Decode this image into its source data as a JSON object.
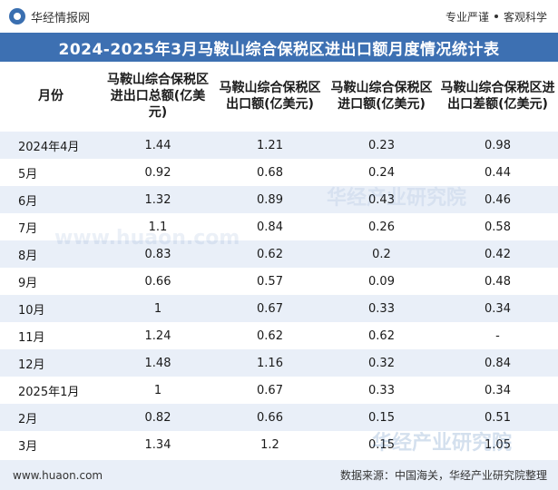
{
  "brand": {
    "name": "华经情报网",
    "tagline_left": "专业严谨",
    "tagline_right": "客观科学"
  },
  "title": "2024-2025年3月马鞍山综合保税区进出口额月度情况统计表",
  "table": {
    "headers": [
      "月份",
      "马鞍山综合保税区进出口总额(亿美元)",
      "马鞍山综合保税区出口额(亿美元)",
      "马鞍山综合保税区进口额(亿美元)",
      "马鞍山综合保税区进出口差额(亿美元)"
    ],
    "rows": [
      [
        "2024年4月",
        "1.44",
        "1.21",
        "0.23",
        "0.98"
      ],
      [
        "5月",
        "0.92",
        "0.68",
        "0.24",
        "0.44"
      ],
      [
        "6月",
        "1.32",
        "0.89",
        "0.43",
        "0.46"
      ],
      [
        "7月",
        "1.1",
        "0.84",
        "0.26",
        "0.58"
      ],
      [
        "8月",
        "0.83",
        "0.62",
        "0.2",
        "0.42"
      ],
      [
        "9月",
        "0.66",
        "0.57",
        "0.09",
        "0.48"
      ],
      [
        "10月",
        "1",
        "0.67",
        "0.33",
        "0.34"
      ],
      [
        "11月",
        "1.24",
        "0.62",
        "0.62",
        "-"
      ],
      [
        "12月",
        "1.48",
        "1.16",
        "0.32",
        "0.84"
      ],
      [
        "2025年1月",
        "1",
        "0.67",
        "0.33",
        "0.34"
      ],
      [
        "2月",
        "0.82",
        "0.66",
        "0.15",
        "0.51"
      ],
      [
        "3月",
        "1.34",
        "1.2",
        "0.15",
        "1.05"
      ]
    ]
  },
  "footer": {
    "website": "www.huaon.com",
    "source": "数据来源：中国海关，华经产业研究院整理"
  },
  "watermark": {
    "text": "华经产业研究院",
    "url": "www.huaon.com"
  },
  "colors": {
    "title_bg": "#3d70b2",
    "stripe": "#e9eff8"
  }
}
